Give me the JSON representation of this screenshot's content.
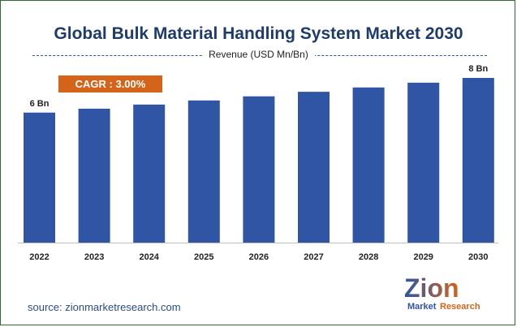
{
  "title": "Global Bulk Material Handling System Market 2030",
  "subtitle": "Revenue (USD Mn/Bn)",
  "cagr_label": "CAGR : 3.00%",
  "source": "source: zionmarketresearch.com",
  "logo": {
    "line1": "Zion",
    "line2": "Market Research"
  },
  "colors": {
    "bar": "#2f55a4",
    "accent": "#d4641a",
    "title": "#1f3b6b"
  },
  "chart_data": {
    "type": "bar",
    "title": "Global Bulk Material Handling System Market 2030",
    "ylabel": "Revenue (USD Mn/Bn)",
    "categories": [
      "2022",
      "2023",
      "2024",
      "2025",
      "2026",
      "2027",
      "2028",
      "2029",
      "2030"
    ],
    "values": [
      6.0,
      6.18,
      6.37,
      6.56,
      6.75,
      6.96,
      7.16,
      7.38,
      7.6
    ],
    "data_labels": [
      {
        "index": 0,
        "text": "6 Bn"
      },
      {
        "index": 8,
        "text": "8 Bn"
      }
    ],
    "ylim": [
      0,
      8.2
    ],
    "grid": false,
    "legend": "none"
  }
}
